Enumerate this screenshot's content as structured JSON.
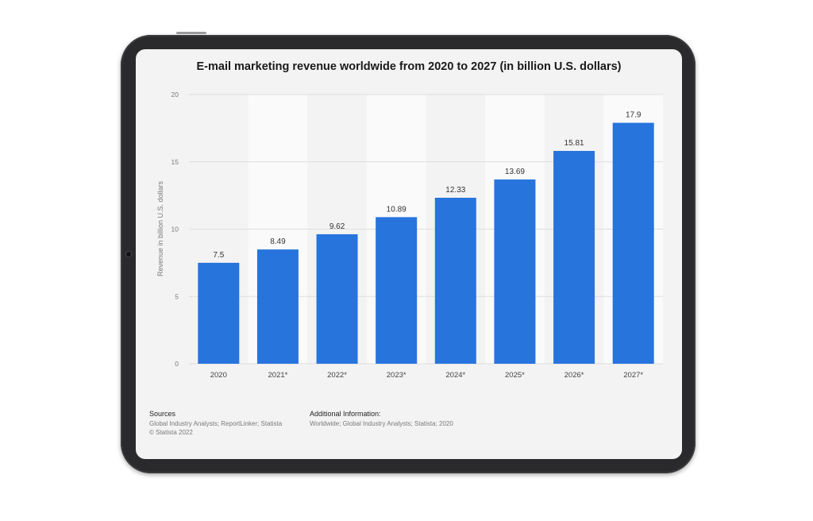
{
  "chart_data": {
    "type": "bar",
    "title": "E-mail marketing revenue worldwide from 2020 to 2027 (in billion U.S. dollars)",
    "xlabel": "",
    "ylabel": "Revenue in billion U.S. dollars",
    "categories": [
      "2020",
      "2021*",
      "2022*",
      "2023*",
      "2024*",
      "2025*",
      "2026*",
      "2027*"
    ],
    "values": [
      7.5,
      8.49,
      9.62,
      10.89,
      12.33,
      13.69,
      15.81,
      17.9
    ],
    "value_labels": [
      "7.5",
      "8.49",
      "9.62",
      "10.89",
      "12.33",
      "13.69",
      "15.81",
      "17.9"
    ],
    "ylim": [
      0,
      20
    ],
    "yticks": [
      0,
      5,
      10,
      15,
      20
    ],
    "grid": true,
    "bar_color": "#2874dd"
  },
  "footer": {
    "sources_heading": "Sources",
    "sources_line1": "Global Industry Analysts; ReportLinker; Statista",
    "sources_line2": "© Statista 2022",
    "additional_heading": "Additional Information:",
    "additional_line1": "Worldwide; Global Industry Analysts; Statista; 2020"
  }
}
